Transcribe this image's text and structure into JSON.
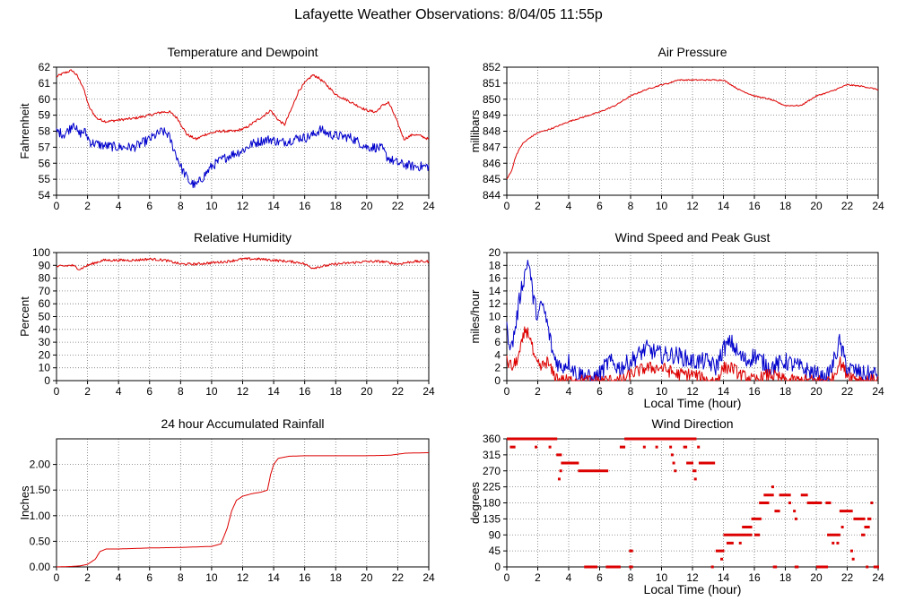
{
  "page": {
    "title": "Lafayette Weather Observations: 8/04/05 11:55p"
  },
  "colors": {
    "red": "#dd0000",
    "blue": "#0000cc",
    "grid": "#777777",
    "frame": "#000000"
  },
  "chart_data": [
    {
      "id": "temp",
      "type": "line",
      "title": "Temperature and Dewpoint",
      "xlabel": "",
      "ylabel": "Fahrenheit",
      "xlim": [
        0,
        24
      ],
      "ylim": [
        54,
        62
      ],
      "xticks": [
        0,
        2,
        4,
        6,
        8,
        10,
        12,
        14,
        16,
        18,
        20,
        22,
        24
      ],
      "yticks": [
        54,
        55,
        56,
        57,
        58,
        59,
        60,
        61,
        62
      ],
      "ytick_labels": [
        "54",
        "55",
        "56",
        "57",
        "58",
        "59",
        "60",
        "61",
        "62"
      ],
      "grid": true,
      "series": [
        {
          "color": "#dd0000",
          "jitter": 0.08,
          "x": [
            0,
            0.4,
            1.0,
            1.3,
            1.7,
            2.1,
            2.6,
            3.2,
            4.0,
            5.0,
            6.0,
            6.8,
            7.3,
            7.8,
            8.4,
            9.0,
            9.6,
            10.5,
            11.5,
            12.2,
            12.8,
            13.4,
            13.8,
            14.3,
            14.7,
            15.2,
            15.6,
            16.0,
            16.5,
            16.8,
            17.3,
            18.0,
            19.0,
            20.0,
            20.6,
            21.0,
            21.4,
            21.7,
            22.0,
            22.4,
            23.0,
            23.5,
            24.0
          ],
          "y": [
            61.4,
            61.6,
            61.8,
            61.5,
            60.8,
            59.5,
            58.8,
            58.6,
            58.7,
            58.8,
            59.0,
            59.2,
            59.2,
            58.8,
            57.8,
            57.5,
            57.8,
            58.0,
            58.0,
            58.2,
            58.6,
            59.0,
            59.3,
            58.7,
            58.4,
            59.5,
            60.5,
            61.0,
            61.5,
            61.4,
            61.0,
            60.3,
            59.8,
            59.3,
            59.2,
            59.6,
            59.8,
            59.2,
            58.5,
            57.5,
            57.8,
            57.7,
            57.5
          ]
        },
        {
          "color": "#0000cc",
          "jitter": 0.3,
          "x": [
            0,
            0.5,
            0.9,
            1.1,
            1.4,
            1.8,
            2.2,
            3.0,
            4.0,
            5.0,
            6.0,
            6.8,
            7.2,
            7.6,
            8.1,
            8.6,
            9.0,
            9.5,
            10.0,
            10.6,
            11.2,
            12.0,
            12.6,
            13.2,
            13.8,
            14.4,
            15.0,
            15.6,
            16.1,
            16.6,
            17.0,
            17.6,
            18.2,
            19.0,
            20.0,
            20.5,
            21.0,
            21.3,
            21.6,
            22.0,
            22.5,
            23.0,
            23.6,
            24.0
          ],
          "y": [
            58.0,
            57.8,
            58.2,
            58.6,
            57.8,
            58.0,
            57.3,
            57.1,
            57.0,
            57.0,
            57.5,
            58.0,
            57.8,
            56.8,
            55.6,
            54.8,
            54.6,
            55.2,
            55.8,
            56.2,
            56.5,
            56.8,
            57.2,
            57.4,
            57.5,
            57.3,
            57.4,
            57.6,
            57.6,
            57.8,
            58.1,
            57.8,
            57.7,
            57.6,
            57.0,
            57.0,
            56.9,
            56.4,
            56.2,
            56.0,
            55.9,
            55.8,
            55.8,
            55.8
          ]
        }
      ]
    },
    {
      "id": "press",
      "type": "line",
      "title": "Air Pressure",
      "xlabel": "",
      "ylabel": "millibars",
      "xlim": [
        0,
        24
      ],
      "ylim": [
        844,
        852
      ],
      "xticks": [
        0,
        2,
        4,
        6,
        8,
        10,
        12,
        14,
        16,
        18,
        20,
        22,
        24
      ],
      "yticks": [
        844,
        845,
        846,
        847,
        848,
        849,
        850,
        851,
        852
      ],
      "ytick_labels": [
        "844",
        "845",
        "846",
        "847",
        "848",
        "849",
        "850",
        "851",
        "852"
      ],
      "grid": true,
      "series": [
        {
          "color": "#dd0000",
          "jitter": 0.04,
          "x": [
            0,
            0.3,
            0.6,
            1.0,
            1.5,
            2.0,
            3.0,
            4.0,
            5.0,
            6.0,
            7.0,
            8.0,
            9.0,
            10.0,
            10.5,
            11.0,
            12.0,
            13.0,
            14.0,
            15.0,
            16.0,
            17.0,
            18.0,
            19.0,
            20.0,
            21.0,
            22.0,
            23.0,
            24.0
          ],
          "y": [
            845.0,
            845.5,
            846.5,
            847.2,
            847.6,
            847.9,
            848.2,
            848.6,
            848.9,
            849.2,
            849.6,
            850.2,
            850.6,
            850.9,
            851.0,
            851.2,
            851.2,
            851.2,
            851.2,
            850.6,
            850.2,
            850.0,
            849.6,
            849.6,
            850.2,
            850.5,
            850.9,
            850.8,
            850.6
          ]
        }
      ]
    },
    {
      "id": "rh",
      "type": "line",
      "title": "Relative Humidity",
      "xlabel": "",
      "ylabel": "Percent",
      "xlim": [
        0,
        24
      ],
      "ylim": [
        0,
        100
      ],
      "xticks": [
        0,
        2,
        4,
        6,
        8,
        10,
        12,
        14,
        16,
        18,
        20,
        22,
        24
      ],
      "yticks": [
        0,
        10,
        20,
        30,
        40,
        50,
        60,
        70,
        80,
        90,
        100
      ],
      "ytick_labels": [
        "0",
        "10",
        "20",
        "30",
        "40",
        "50",
        "60",
        "70",
        "80",
        "90",
        "100"
      ],
      "grid": true,
      "series": [
        {
          "color": "#dd0000",
          "jitter": 1.0,
          "x": [
            0,
            1.0,
            1.5,
            2.0,
            3.0,
            4.0,
            5.0,
            6.0,
            7.0,
            8.0,
            9.0,
            10.0,
            11.0,
            12.0,
            13.0,
            14.0,
            15.0,
            15.8,
            16.5,
            17.0,
            18.0,
            19.0,
            20.0,
            21.0,
            22.0,
            23.0,
            24.0
          ],
          "y": [
            89,
            90,
            87,
            90,
            94,
            94,
            94,
            95,
            94,
            91,
            91,
            92,
            93,
            95,
            95,
            94,
            93,
            92,
            88,
            89,
            91,
            92,
            93,
            93,
            91,
            93,
            93
          ]
        }
      ]
    },
    {
      "id": "wind",
      "type": "line",
      "title": "Wind Speed and Peak Gust",
      "xlabel": "Local Time (hour)",
      "ylabel": "miles/hour",
      "xlim": [
        0,
        24
      ],
      "ylim": [
        0,
        20
      ],
      "xticks": [
        0,
        2,
        4,
        6,
        8,
        10,
        12,
        14,
        16,
        18,
        20,
        22,
        24
      ],
      "yticks": [
        0,
        2,
        4,
        6,
        8,
        10,
        12,
        14,
        16,
        18,
        20
      ],
      "ytick_labels": [
        "0",
        "2",
        "4",
        "6",
        "8",
        "10",
        "12",
        "14",
        "16",
        "18",
        "20"
      ],
      "grid": true,
      "series": [
        {
          "color": "#0000cc",
          "jitter": 1.4,
          "floor": 0,
          "x": [
            0,
            0.3,
            0.6,
            0.9,
            1.2,
            1.4,
            1.7,
            2.0,
            2.3,
            2.6,
            3.0,
            3.5,
            4.0,
            4.5,
            5.0,
            5.5,
            6.0,
            6.6,
            7.3,
            8.0,
            9.0,
            10.0,
            11.0,
            12.0,
            13.0,
            13.5,
            14.0,
            14.5,
            15.0,
            15.5,
            16.0,
            17.0,
            18.0,
            19.0,
            20.0,
            20.6,
            21.0,
            21.5,
            22.0,
            23.0,
            24.0
          ],
          "y": [
            8,
            5,
            9,
            14,
            17,
            19,
            13,
            10,
            12,
            9,
            4,
            2,
            3,
            1,
            1,
            0,
            1,
            3,
            2,
            3,
            5,
            4,
            4,
            3,
            3,
            2,
            5,
            6,
            4,
            3,
            4,
            2,
            3,
            2,
            1,
            0,
            2,
            6,
            2,
            1,
            1
          ]
        },
        {
          "color": "#dd0000",
          "jitter": 1.0,
          "floor": 0,
          "x": [
            0,
            0.4,
            0.8,
            1.0,
            1.2,
            1.5,
            1.8,
            2.2,
            2.6,
            3.0,
            3.5,
            4.0,
            5.0,
            6.0,
            7.5,
            8.0,
            9.0,
            10.0,
            11.0,
            12.0,
            13.0,
            13.5,
            14.0,
            14.6,
            15.0,
            16.0,
            17.0,
            18.0,
            19.0,
            20.0,
            21.0,
            21.5,
            22.0,
            23.0,
            24.0
          ],
          "y": [
            3,
            2,
            4,
            6,
            8,
            7,
            3,
            2,
            3,
            1,
            0,
            0,
            0,
            0,
            0,
            1,
            2,
            2,
            1,
            1,
            0,
            0,
            2,
            2,
            1,
            0,
            1,
            0,
            0,
            0,
            0,
            3,
            1,
            0,
            0
          ]
        }
      ]
    },
    {
      "id": "rain",
      "type": "line",
      "title": "24 hour Accumulated Rainfall",
      "xlabel": "",
      "ylabel": "Inches",
      "xlim": [
        0,
        24
      ],
      "ylim": [
        0,
        2.5
      ],
      "xticks": [
        0,
        2,
        4,
        6,
        8,
        10,
        12,
        14,
        16,
        18,
        20,
        22,
        24
      ],
      "yticks": [
        0,
        0.5,
        1.0,
        1.5,
        2.0
      ],
      "ytick_labels": [
        "0.00",
        "0.50",
        "1.00",
        "1.50",
        "2.00"
      ],
      "grid": true,
      "series": [
        {
          "color": "#dd0000",
          "jitter": 0,
          "x": [
            0,
            1.0,
            1.5,
            2.0,
            2.5,
            2.8,
            3.2,
            4.0,
            6.0,
            8.0,
            10.0,
            10.6,
            11.0,
            11.3,
            11.6,
            12.0,
            12.6,
            13.2,
            13.6,
            13.8,
            14.0,
            14.3,
            15.0,
            16.0,
            18.0,
            20.0,
            21.5,
            22.5,
            24.0
          ],
          "y": [
            0,
            0.01,
            0.02,
            0.05,
            0.15,
            0.3,
            0.35,
            0.35,
            0.37,
            0.38,
            0.4,
            0.45,
            0.75,
            1.1,
            1.3,
            1.38,
            1.43,
            1.46,
            1.5,
            1.8,
            2.0,
            2.12,
            2.16,
            2.17,
            2.17,
            2.17,
            2.18,
            2.22,
            2.23
          ]
        }
      ]
    },
    {
      "id": "wdir",
      "type": "scatter",
      "title": "Wind Direction",
      "xlabel": "Local Time (hour)",
      "ylabel": "degrees",
      "xlim": [
        0,
        24
      ],
      "ylim": [
        0,
        360
      ],
      "xticks": [
        0,
        2,
        4,
        6,
        8,
        10,
        12,
        14,
        16,
        18,
        20,
        22,
        24
      ],
      "yticks": [
        0,
        45,
        90,
        135,
        180,
        225,
        270,
        315,
        360
      ],
      "ytick_labels": [
        "0",
        "45",
        "90",
        "135",
        "180",
        "225",
        "270",
        "315",
        "360"
      ],
      "grid": true,
      "series": [
        {
          "color": "#dd0000",
          "segments": [
            [
              0,
              3.2,
              360
            ],
            [
              0.2,
              0.5,
              337
            ],
            [
              1.8,
              1.9,
              337
            ],
            [
              2.7,
              2.8,
              337
            ],
            [
              3.2,
              3.5,
              315
            ],
            [
              3.3,
              3.4,
              247
            ],
            [
              3.4,
              3.5,
              270
            ],
            [
              3.5,
              4.6,
              292
            ],
            [
              4.6,
              6.5,
              270
            ],
            [
              5.0,
              5.8,
              0
            ],
            [
              6.4,
              7.3,
              0
            ],
            [
              7.3,
              7.6,
              337
            ],
            [
              7.6,
              8.2,
              360
            ],
            [
              7.9,
              8.1,
              45
            ],
            [
              7.9,
              8.1,
              0
            ],
            [
              8.2,
              12.2,
              360
            ],
            [
              8.8,
              8.9,
              337
            ],
            [
              9.6,
              9.7,
              337
            ],
            [
              10.5,
              10.6,
              337
            ],
            [
              10.6,
              10.7,
              315
            ],
            [
              10.7,
              10.8,
              292
            ],
            [
              10.8,
              10.9,
              270
            ],
            [
              11.4,
              11.6,
              337
            ],
            [
              11.6,
              12.0,
              292
            ],
            [
              12.0,
              12.2,
              270
            ],
            [
              12.1,
              12.2,
              247
            ],
            [
              12.3,
              12.4,
              337
            ],
            [
              12.4,
              13.4,
              292
            ],
            [
              13.2,
              13.3,
              0
            ],
            [
              13.5,
              14.0,
              45
            ],
            [
              13.8,
              13.9,
              22
            ],
            [
              14.0,
              15.8,
              90
            ],
            [
              14.2,
              14.6,
              67
            ],
            [
              15.0,
              15.1,
              67
            ],
            [
              15.2,
              15.8,
              112
            ],
            [
              15.8,
              16.4,
              135
            ],
            [
              16.0,
              16.3,
              90
            ],
            [
              16.3,
              16.9,
              180
            ],
            [
              16.6,
              17.2,
              202
            ],
            [
              17.1,
              17.2,
              225
            ],
            [
              17.2,
              17.4,
              0
            ],
            [
              17.3,
              17.6,
              157
            ],
            [
              17.6,
              18.3,
              202
            ],
            [
              18.2,
              18.3,
              180
            ],
            [
              18.5,
              18.6,
              157
            ],
            [
              18.6,
              18.7,
              135
            ],
            [
              18.6,
              18.8,
              0
            ],
            [
              19.0,
              19.4,
              202
            ],
            [
              19.4,
              20.3,
              180
            ],
            [
              20.0,
              20.7,
              0
            ],
            [
              20.6,
              20.9,
              180
            ],
            [
              20.7,
              21.5,
              90
            ],
            [
              21.0,
              21.1,
              67
            ],
            [
              21.3,
              21.4,
              67
            ],
            [
              21.5,
              22.3,
              157
            ],
            [
              21.6,
              21.7,
              112
            ],
            [
              22.2,
              22.3,
              45
            ],
            [
              22.3,
              22.4,
              22
            ],
            [
              22.4,
              23.1,
              135
            ],
            [
              22.9,
              23.1,
              90
            ],
            [
              23.1,
              23.4,
              112
            ],
            [
              23.3,
              23.5,
              135
            ],
            [
              23.2,
              23.3,
              0
            ],
            [
              23.5,
              23.6,
              180
            ],
            [
              23.7,
              24.0,
              0
            ]
          ]
        }
      ]
    }
  ]
}
